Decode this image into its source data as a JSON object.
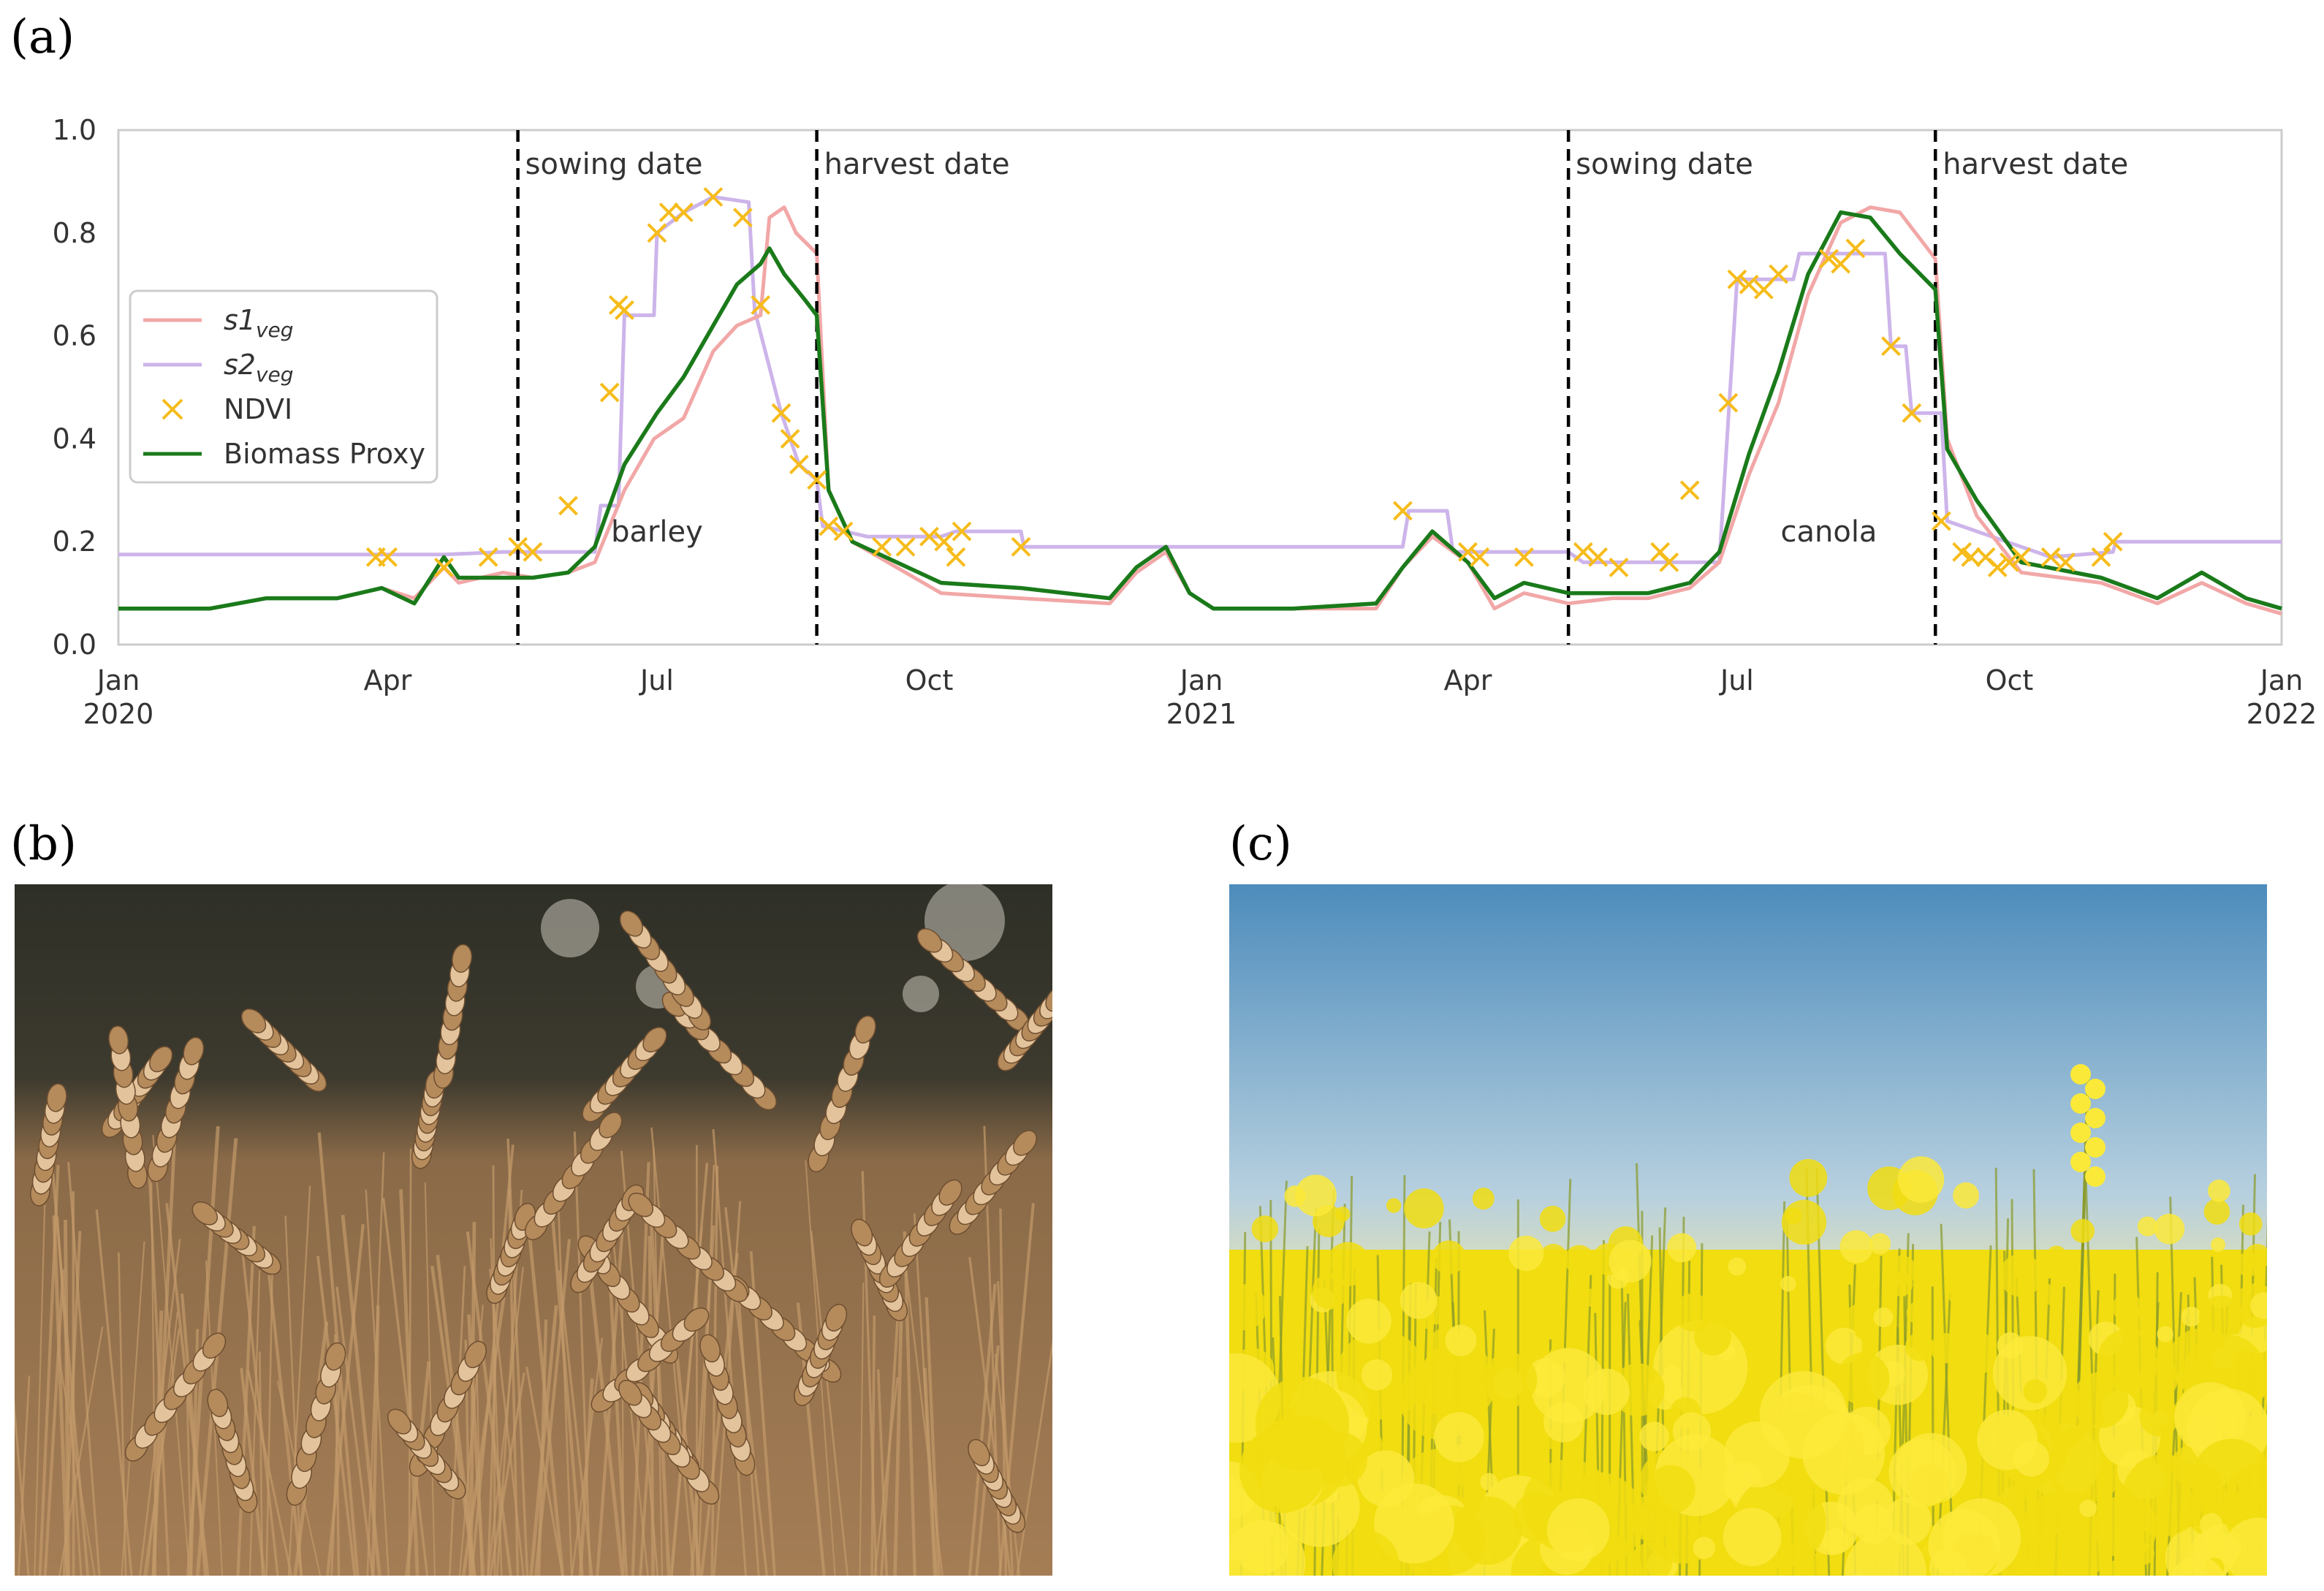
{
  "panels": {
    "a": "(a)",
    "b": "(b)",
    "c": "(c)"
  },
  "chart_data": {
    "type": "line",
    "title": "",
    "xlabel": "",
    "ylabel": "",
    "ylim": [
      0.0,
      1.0
    ],
    "xlim": [
      "2020-01-01",
      "2022-01-01"
    ],
    "y_ticks": [
      "0.0",
      "0.2",
      "0.4",
      "0.6",
      "0.8",
      "1.0"
    ],
    "x_ticks": [
      {
        "date": "2020-01-01",
        "label": "Jan",
        "year": "2020"
      },
      {
        "date": "2020-04-01",
        "label": "Apr",
        "year": ""
      },
      {
        "date": "2020-07-01",
        "label": "Jul",
        "year": ""
      },
      {
        "date": "2020-10-01",
        "label": "Oct",
        "year": ""
      },
      {
        "date": "2021-01-01",
        "label": "Jan",
        "year": "2021"
      },
      {
        "date": "2021-04-01",
        "label": "Apr",
        "year": ""
      },
      {
        "date": "2021-07-01",
        "label": "Jul",
        "year": ""
      },
      {
        "date": "2021-10-01",
        "label": "Oct",
        "year": ""
      },
      {
        "date": "2022-01-01",
        "label": "Jan",
        "year": "2022"
      }
    ],
    "grid": false,
    "legend_position": "left",
    "colors": {
      "s1": "#f2a7a7",
      "s2": "#cdb4ea",
      "ndvi": "#f6bc1b",
      "biomass": "#1a7a1a",
      "vlines": "#000000"
    },
    "legend": [
      {
        "key": "s1",
        "base": "s1",
        "sub": "veg"
      },
      {
        "key": "s2",
        "base": "s2",
        "sub": "veg"
      },
      {
        "key": "ndvi",
        "label": "NDVI"
      },
      {
        "key": "biomass",
        "label": "Biomass Proxy"
      }
    ],
    "vertical_lines": [
      {
        "date": "2020-05-15",
        "label": "sowing date"
      },
      {
        "date": "2020-08-24",
        "label": "harvest date"
      },
      {
        "date": "2021-05-05",
        "label": "sowing date"
      },
      {
        "date": "2021-09-06",
        "label": "harvest date"
      }
    ],
    "annotations": [
      {
        "date": "2020-07-01",
        "y": 0.22,
        "text": "barley"
      },
      {
        "date": "2021-08-01",
        "y": 0.22,
        "text": "canola"
      }
    ],
    "series": [
      {
        "name": "s1",
        "key": "s1",
        "points": [
          [
            "2020-01-01",
            0.07
          ],
          [
            "2020-02-01",
            0.07
          ],
          [
            "2020-02-20",
            0.09
          ],
          [
            "2020-03-15",
            0.09
          ],
          [
            "2020-03-30",
            0.11
          ],
          [
            "2020-04-10",
            0.09
          ],
          [
            "2020-04-20",
            0.15
          ],
          [
            "2020-04-25",
            0.12
          ],
          [
            "2020-05-10",
            0.14
          ],
          [
            "2020-05-20",
            0.13
          ],
          [
            "2020-06-01",
            0.14
          ],
          [
            "2020-06-10",
            0.16
          ],
          [
            "2020-06-20",
            0.3
          ],
          [
            "2020-06-30",
            0.4
          ],
          [
            "2020-07-10",
            0.44
          ],
          [
            "2020-07-20",
            0.57
          ],
          [
            "2020-07-28",
            0.62
          ],
          [
            "2020-08-05",
            0.64
          ],
          [
            "2020-08-08",
            0.83
          ],
          [
            "2020-08-13",
            0.85
          ],
          [
            "2020-08-17",
            0.8
          ],
          [
            "2020-08-24",
            0.76
          ],
          [
            "2020-08-28",
            0.3
          ],
          [
            "2020-09-05",
            0.2
          ],
          [
            "2020-09-20",
            0.15
          ],
          [
            "2020-10-05",
            0.1
          ],
          [
            "2020-11-01",
            0.09
          ],
          [
            "2020-12-01",
            0.08
          ],
          [
            "2020-12-10",
            0.14
          ],
          [
            "2020-12-20",
            0.18
          ],
          [
            "2020-12-28",
            0.1
          ],
          [
            "2021-01-05",
            0.07
          ],
          [
            "2021-02-01",
            0.07
          ],
          [
            "2021-02-20",
            0.07
          ],
          [
            "2021-03-01",
            0.07
          ],
          [
            "2021-03-10",
            0.15
          ],
          [
            "2021-03-20",
            0.21
          ],
          [
            "2021-04-01",
            0.16
          ],
          [
            "2021-04-10",
            0.07
          ],
          [
            "2021-04-20",
            0.1
          ],
          [
            "2021-05-05",
            0.08
          ],
          [
            "2021-05-20",
            0.09
          ],
          [
            "2021-06-01",
            0.09
          ],
          [
            "2021-06-15",
            0.11
          ],
          [
            "2021-06-25",
            0.16
          ],
          [
            "2021-07-05",
            0.33
          ],
          [
            "2021-07-15",
            0.47
          ],
          [
            "2021-07-25",
            0.68
          ],
          [
            "2021-08-05",
            0.82
          ],
          [
            "2021-08-15",
            0.85
          ],
          [
            "2021-08-25",
            0.84
          ],
          [
            "2021-09-06",
            0.75
          ],
          [
            "2021-09-10",
            0.4
          ],
          [
            "2021-09-20",
            0.25
          ],
          [
            "2021-10-05",
            0.14
          ],
          [
            "2021-11-01",
            0.12
          ],
          [
            "2021-11-20",
            0.08
          ],
          [
            "2021-12-05",
            0.12
          ],
          [
            "2021-12-20",
            0.08
          ],
          [
            "2022-01-01",
            0.06
          ]
        ]
      },
      {
        "name": "s2",
        "key": "s2",
        "points": [
          [
            "2020-01-01",
            0.175
          ],
          [
            "2020-04-20",
            0.175
          ],
          [
            "2020-05-10",
            0.18
          ],
          [
            "2020-06-10",
            0.18
          ],
          [
            "2020-06-12",
            0.27
          ],
          [
            "2020-06-18",
            0.27
          ],
          [
            "2020-06-20",
            0.64
          ],
          [
            "2020-06-30",
            0.64
          ],
          [
            "2020-07-01",
            0.8
          ],
          [
            "2020-07-10",
            0.84
          ],
          [
            "2020-07-20",
            0.87
          ],
          [
            "2020-08-01",
            0.86
          ],
          [
            "2020-08-03",
            0.65
          ],
          [
            "2020-08-12",
            0.45
          ],
          [
            "2020-08-18",
            0.35
          ],
          [
            "2020-08-24",
            0.32
          ],
          [
            "2020-08-26",
            0.23
          ],
          [
            "2020-09-10",
            0.21
          ],
          [
            "2020-10-05",
            0.21
          ],
          [
            "2020-10-10",
            0.22
          ],
          [
            "2020-11-01",
            0.22
          ],
          [
            "2020-11-02",
            0.19
          ],
          [
            "2021-03-10",
            0.19
          ],
          [
            "2021-03-12",
            0.26
          ],
          [
            "2021-03-25",
            0.26
          ],
          [
            "2021-03-27",
            0.18
          ],
          [
            "2021-05-05",
            0.18
          ],
          [
            "2021-05-10",
            0.16
          ],
          [
            "2021-06-25",
            0.16
          ],
          [
            "2021-07-01",
            0.71
          ],
          [
            "2021-07-20",
            0.71
          ],
          [
            "2021-07-22",
            0.76
          ],
          [
            "2021-08-20",
            0.76
          ],
          [
            "2021-08-22",
            0.58
          ],
          [
            "2021-08-27",
            0.58
          ],
          [
            "2021-08-29",
            0.45
          ],
          [
            "2021-09-08",
            0.45
          ],
          [
            "2021-09-10",
            0.24
          ],
          [
            "2021-10-15",
            0.17
          ],
          [
            "2021-11-05",
            0.18
          ],
          [
            "2021-11-06",
            0.2
          ],
          [
            "2022-01-01",
            0.2
          ]
        ]
      },
      {
        "name": "NDVI",
        "key": "ndvi",
        "markers": [
          [
            "2020-03-28",
            0.17
          ],
          [
            "2020-04-01",
            0.17
          ],
          [
            "2020-04-20",
            0.15
          ],
          [
            "2020-05-05",
            0.17
          ],
          [
            "2020-05-15",
            0.19
          ],
          [
            "2020-05-20",
            0.18
          ],
          [
            "2020-06-01",
            0.27
          ],
          [
            "2020-06-15",
            0.49
          ],
          [
            "2020-06-18",
            0.66
          ],
          [
            "2020-06-20",
            0.65
          ],
          [
            "2020-07-01",
            0.8
          ],
          [
            "2020-07-05",
            0.84
          ],
          [
            "2020-07-10",
            0.84
          ],
          [
            "2020-07-20",
            0.87
          ],
          [
            "2020-07-30",
            0.83
          ],
          [
            "2020-08-05",
            0.66
          ],
          [
            "2020-08-12",
            0.45
          ],
          [
            "2020-08-15",
            0.4
          ],
          [
            "2020-08-18",
            0.35
          ],
          [
            "2020-08-24",
            0.32
          ],
          [
            "2020-08-28",
            0.23
          ],
          [
            "2020-09-02",
            0.22
          ],
          [
            "2020-09-15",
            0.19
          ],
          [
            "2020-09-23",
            0.19
          ],
          [
            "2020-10-01",
            0.21
          ],
          [
            "2020-10-06",
            0.2
          ],
          [
            "2020-10-10",
            0.17
          ],
          [
            "2020-10-12",
            0.22
          ],
          [
            "2020-11-01",
            0.19
          ],
          [
            "2021-03-10",
            0.26
          ],
          [
            "2021-04-01",
            0.18
          ],
          [
            "2021-04-05",
            0.17
          ],
          [
            "2021-04-20",
            0.17
          ],
          [
            "2021-05-10",
            0.18
          ],
          [
            "2021-05-15",
            0.17
          ],
          [
            "2021-05-22",
            0.15
          ],
          [
            "2021-06-05",
            0.18
          ],
          [
            "2021-06-08",
            0.16
          ],
          [
            "2021-06-15",
            0.3
          ],
          [
            "2021-06-28",
            0.47
          ],
          [
            "2021-07-01",
            0.71
          ],
          [
            "2021-07-05",
            0.7
          ],
          [
            "2021-07-10",
            0.69
          ],
          [
            "2021-07-15",
            0.72
          ],
          [
            "2021-08-01",
            0.75
          ],
          [
            "2021-08-05",
            0.74
          ],
          [
            "2021-08-10",
            0.77
          ],
          [
            "2021-08-22",
            0.58
          ],
          [
            "2021-08-29",
            0.45
          ],
          [
            "2021-09-08",
            0.24
          ],
          [
            "2021-09-15",
            0.18
          ],
          [
            "2021-09-18",
            0.17
          ],
          [
            "2021-09-23",
            0.17
          ],
          [
            "2021-09-27",
            0.15
          ],
          [
            "2021-10-01",
            0.16
          ],
          [
            "2021-10-05",
            0.17
          ],
          [
            "2021-10-15",
            0.17
          ],
          [
            "2021-10-20",
            0.16
          ],
          [
            "2021-11-01",
            0.17
          ],
          [
            "2021-11-05",
            0.2
          ]
        ]
      },
      {
        "name": "Biomass Proxy",
        "key": "biomass",
        "points": [
          [
            "2020-01-01",
            0.07
          ],
          [
            "2020-02-01",
            0.07
          ],
          [
            "2020-02-20",
            0.09
          ],
          [
            "2020-03-15",
            0.09
          ],
          [
            "2020-03-30",
            0.11
          ],
          [
            "2020-04-10",
            0.08
          ],
          [
            "2020-04-20",
            0.17
          ],
          [
            "2020-04-25",
            0.13
          ],
          [
            "2020-05-10",
            0.13
          ],
          [
            "2020-05-20",
            0.13
          ],
          [
            "2020-06-01",
            0.14
          ],
          [
            "2020-06-10",
            0.19
          ],
          [
            "2020-06-20",
            0.35
          ],
          [
            "2020-07-01",
            0.45
          ],
          [
            "2020-07-10",
            0.52
          ],
          [
            "2020-07-20",
            0.62
          ],
          [
            "2020-07-28",
            0.7
          ],
          [
            "2020-08-05",
            0.74
          ],
          [
            "2020-08-08",
            0.77
          ],
          [
            "2020-08-13",
            0.72
          ],
          [
            "2020-08-20",
            0.67
          ],
          [
            "2020-08-24",
            0.64
          ],
          [
            "2020-08-28",
            0.3
          ],
          [
            "2020-09-05",
            0.2
          ],
          [
            "2020-09-20",
            0.16
          ],
          [
            "2020-10-05",
            0.12
          ],
          [
            "2020-11-01",
            0.11
          ],
          [
            "2020-12-01",
            0.09
          ],
          [
            "2020-12-10",
            0.15
          ],
          [
            "2020-12-20",
            0.19
          ],
          [
            "2020-12-28",
            0.1
          ],
          [
            "2021-01-05",
            0.07
          ],
          [
            "2021-02-01",
            0.07
          ],
          [
            "2021-03-01",
            0.08
          ],
          [
            "2021-03-10",
            0.15
          ],
          [
            "2021-03-20",
            0.22
          ],
          [
            "2021-04-01",
            0.16
          ],
          [
            "2021-04-10",
            0.09
          ],
          [
            "2021-04-20",
            0.12
          ],
          [
            "2021-05-05",
            0.1
          ],
          [
            "2021-05-20",
            0.1
          ],
          [
            "2021-06-01",
            0.1
          ],
          [
            "2021-06-15",
            0.12
          ],
          [
            "2021-06-25",
            0.18
          ],
          [
            "2021-07-05",
            0.37
          ],
          [
            "2021-07-15",
            0.53
          ],
          [
            "2021-07-25",
            0.72
          ],
          [
            "2021-08-05",
            0.84
          ],
          [
            "2021-08-15",
            0.83
          ],
          [
            "2021-08-25",
            0.76
          ],
          [
            "2021-09-06",
            0.69
          ],
          [
            "2021-09-10",
            0.38
          ],
          [
            "2021-09-20",
            0.28
          ],
          [
            "2021-10-05",
            0.16
          ],
          [
            "2021-11-01",
            0.13
          ],
          [
            "2021-11-20",
            0.09
          ],
          [
            "2021-12-05",
            0.14
          ],
          [
            "2021-12-20",
            0.09
          ],
          [
            "2022-01-01",
            0.07
          ]
        ]
      }
    ]
  },
  "photos": {
    "b": {
      "subject": "golden barley field",
      "colors": {
        "top": "#2e2f27",
        "mid": "#8a6a48",
        "bottom": "#a47d55",
        "stalk": "#c39a6a",
        "highlight": "#e2c39b"
      }
    },
    "c": {
      "subject": "yellow canola field under blue sky",
      "colors": {
        "sky_top": "#4d8cbc",
        "sky_bottom": "#b7d0df",
        "flower": "#f1dd10",
        "flower_bright": "#fbe93a",
        "stem": "#8a9b2a"
      }
    }
  }
}
